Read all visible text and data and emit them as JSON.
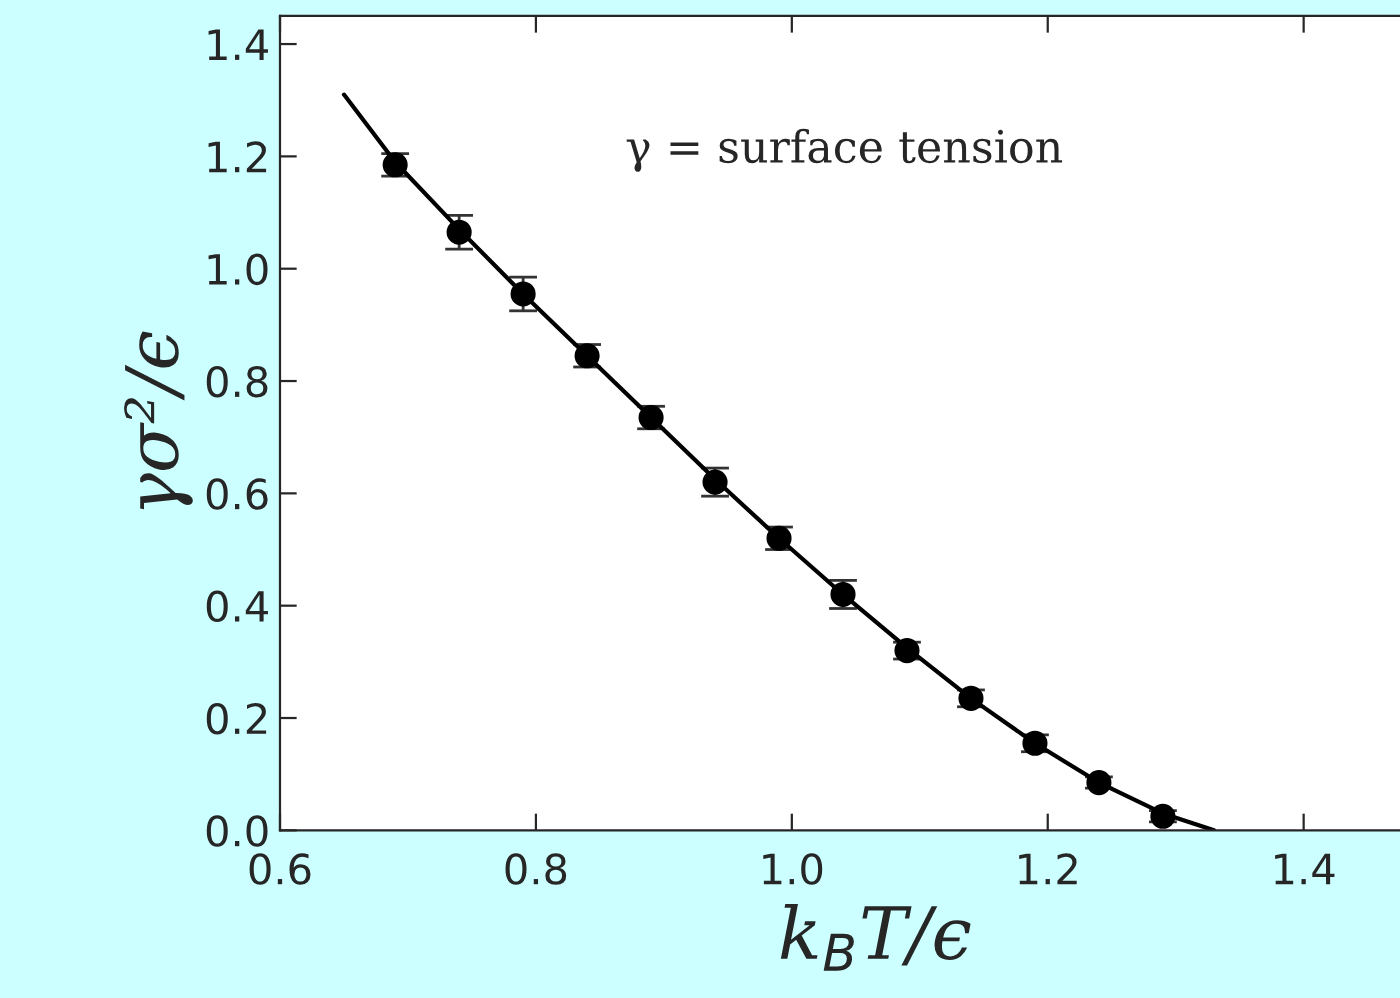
{
  "chart_data": {
    "type": "scatter",
    "xlabel": "k$_{B}$T/ϵ",
    "ylabel": "γσ²/ϵ",
    "annotations": [
      "γ = surface tension"
    ],
    "xlim": [
      0.6,
      1.53
    ],
    "ylim": [
      0,
      1.45
    ],
    "xticks": [
      0.6,
      0.8,
      {
        "value": 1.0,
        "label": "1.0"
      },
      1.2,
      1.4
    ],
    "yticks": [
      {
        "value": 0.0,
        "label": "0.0"
      },
      0.2,
      0.4,
      0.6,
      0.8,
      {
        "value": 1.0,
        "label": "1.0"
      },
      1.2,
      1.4
    ],
    "grid": false,
    "legend": false,
    "marker": "circle",
    "series": [
      {
        "color": "#000000",
        "x": [
          0.69,
          0.74,
          0.79,
          0.84,
          0.89,
          0.94,
          0.99,
          1.04,
          1.09,
          1.14,
          1.19,
          1.24,
          1.29
        ],
        "values": [
          1.185,
          1.065,
          0.955,
          0.845,
          0.735,
          0.62,
          0.52,
          0.42,
          0.32,
          0.235,
          0.155,
          0.085,
          0.025
        ],
        "errors": [
          0.02,
          0.03,
          0.03,
          0.02,
          0.02,
          0.025,
          0.02,
          0.025,
          0.015,
          0.015,
          0.015,
          0.01,
          0.01
        ]
      },
      {
        "type": "line",
        "color": "#000000",
        "marker": "none",
        "line_style": "solid",
        "x": [
          0.65,
          0.69,
          0.74,
          0.79,
          0.84,
          0.89,
          0.94,
          0.99,
          1.04,
          1.09,
          1.14,
          1.19,
          1.24,
          1.29,
          1.33
        ],
        "values": [
          1.31,
          1.19,
          1.07,
          0.955,
          0.845,
          0.735,
          0.625,
          0.52,
          0.42,
          0.325,
          0.235,
          0.155,
          0.085,
          0.03,
          0.0
        ]
      }
    ]
  }
}
